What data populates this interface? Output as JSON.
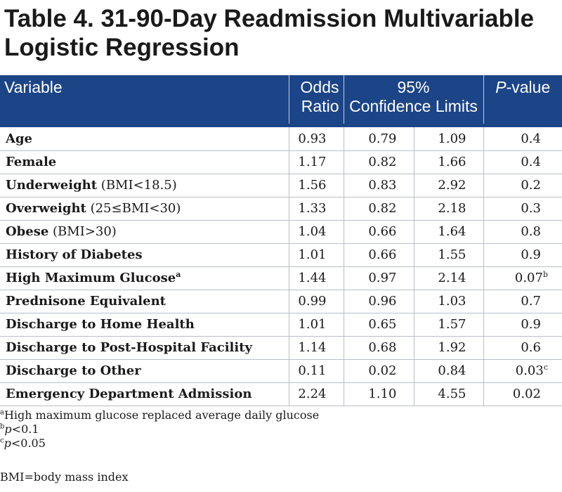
{
  "title": "Table 4. 31-90-Day Readmission Multivariable Logistic Regression",
  "header": {
    "variable": "Variable",
    "odds_line1": "Odds",
    "odds_line2": "Ratio",
    "ci_line1": "95%",
    "ci_line2": "Confidence Limits",
    "p_italic": "P",
    "p_rest": "-value"
  },
  "rows": [
    {
      "name": "Age",
      "paren": "",
      "sup_name": "",
      "or": "0.93",
      "lo": "0.79",
      "hi": "1.09",
      "p": "0.4",
      "p_sup": ""
    },
    {
      "name": "Female",
      "paren": "",
      "sup_name": "",
      "or": "1.17",
      "lo": "0.82",
      "hi": "1.66",
      "p": "0.4",
      "p_sup": ""
    },
    {
      "name": "Underweight",
      "paren": " (BMI<18.5)",
      "sup_name": "",
      "or": "1.56",
      "lo": "0.83",
      "hi": "2.92",
      "p": "0.2",
      "p_sup": ""
    },
    {
      "name": "Overweight",
      "paren": " (25≤BMI<30)",
      "sup_name": "",
      "or": "1.33",
      "lo": "0.82",
      "hi": "2.18",
      "p": "0.3",
      "p_sup": ""
    },
    {
      "name": "Obese",
      "paren": " (BMI>30)",
      "sup_name": "",
      "or": "1.04",
      "lo": "0.66",
      "hi": "1.64",
      "p": "0.8",
      "p_sup": ""
    },
    {
      "name": "History of Diabetes",
      "paren": "",
      "sup_name": "",
      "or": "1.01",
      "lo": "0.66",
      "hi": "1.55",
      "p": "0.9",
      "p_sup": ""
    },
    {
      "name": "High Maximum Glucose",
      "paren": "",
      "sup_name": "a",
      "or": "1.44",
      "lo": "0.97",
      "hi": "2.14",
      "p": "0.07",
      "p_sup": "b"
    },
    {
      "name": "Prednisone Equivalent",
      "paren": "",
      "sup_name": "",
      "or": "0.99",
      "lo": "0.96",
      "hi": "1.03",
      "p": "0.7",
      "p_sup": ""
    },
    {
      "name": "Discharge to Home Health",
      "paren": "",
      "sup_name": "",
      "or": "1.01",
      "lo": "0.65",
      "hi": "1.57",
      "p": "0.9",
      "p_sup": ""
    },
    {
      "name": "Discharge to Post-Hospital Facility",
      "paren": "",
      "sup_name": "",
      "or": "1.14",
      "lo": "0.68",
      "hi": "1.92",
      "p": "0.6",
      "p_sup": ""
    },
    {
      "name": "Discharge to Other",
      "paren": "",
      "sup_name": "",
      "or": "0.11",
      "lo": "0.02",
      "hi": "0.84",
      "p": "0.03",
      "p_sup": "c"
    },
    {
      "name": "Emergency Department Admission",
      "paren": "",
      "sup_name": "",
      "or": "2.24",
      "lo": "1.10",
      "hi": "4.55",
      "p": "0.02",
      "p_sup": ""
    }
  ],
  "notes": {
    "a": {
      "marker": "a",
      "text": "High maximum glucose replaced average daily glucose"
    },
    "b": {
      "marker": "b",
      "italic": "p",
      "text": "<0.1"
    },
    "c": {
      "marker": "c",
      "italic": "p",
      "text": "<0.05"
    },
    "bmi": "BMI=body mass index"
  },
  "colors": {
    "header_bg": "#1c4587",
    "header_text": "#ffffff",
    "rule": "#b9bec8"
  }
}
